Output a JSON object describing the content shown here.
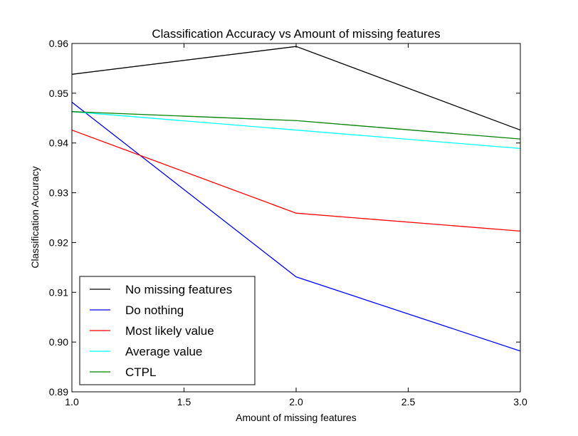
{
  "chart_data": {
    "type": "line",
    "title": "Classification Accuracy vs Amount of missing features",
    "xlabel": "Amount of missing features",
    "ylabel": "Classification Accuracy",
    "xlim": [
      1.0,
      3.0
    ],
    "ylim": [
      0.89,
      0.96
    ],
    "xticks": [
      "1.0",
      "1.5",
      "2.0",
      "2.5",
      "3.0"
    ],
    "yticks": [
      "0.89",
      "0.90",
      "0.91",
      "0.92",
      "0.93",
      "0.94",
      "0.95",
      "0.96"
    ],
    "grid": false,
    "legend_position": "lower-left",
    "x": [
      1.0,
      2.0,
      3.0
    ],
    "series": [
      {
        "name": "No missing features",
        "color": "#000000",
        "values": [
          0.9538,
          0.9594,
          0.9426
        ]
      },
      {
        "name": "Do nothing",
        "color": "#0000ff",
        "values": [
          0.9482,
          0.9131,
          0.8982
        ]
      },
      {
        "name": "Most likely value",
        "color": "#ff0000",
        "values": [
          0.9426,
          0.9259,
          0.9223
        ]
      },
      {
        "name": "Average value",
        "color": "#00ffff",
        "values": [
          0.9463,
          0.9426,
          0.9389
        ]
      },
      {
        "name": "CTPL",
        "color": "#008000",
        "values": [
          0.9463,
          0.9445,
          0.9408
        ]
      }
    ]
  }
}
